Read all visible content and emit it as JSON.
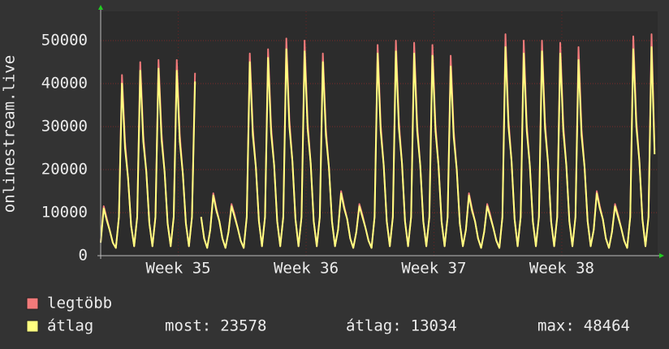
{
  "chart_data": {
    "type": "line",
    "ylabel": "onlinestream.live",
    "x": [
      0,
      4,
      8,
      12,
      16,
      20,
      24,
      28,
      32,
      36,
      40,
      44,
      48,
      52,
      56,
      60,
      64,
      68,
      72,
      76,
      80,
      84,
      88,
      92,
      96,
      100,
      104,
      108,
      112,
      116,
      120,
      124,
      128,
      132,
      136,
      140,
      144,
      148,
      152,
      156,
      160,
      164,
      168,
      172,
      176,
      180,
      184,
      188,
      192,
      196,
      200,
      204,
      208,
      212,
      216,
      220,
      224,
      228,
      232,
      236,
      240,
      244,
      248,
      252,
      256,
      260,
      264,
      268,
      272,
      276,
      280,
      284,
      288,
      292,
      296,
      300,
      304,
      308,
      312,
      316,
      320,
      324,
      328,
      332,
      336,
      340,
      344,
      348,
      352,
      356,
      360,
      364,
      368,
      372,
      376,
      380,
      384,
      388,
      392,
      396,
      400,
      404,
      408,
      412,
      416,
      420,
      424,
      428,
      432,
      436,
      440,
      444,
      448,
      452,
      456,
      460,
      464,
      468,
      472,
      476,
      480,
      484,
      488,
      492,
      496,
      500,
      504,
      508,
      512,
      516,
      520,
      524,
      528,
      532,
      536,
      540,
      544,
      548,
      552,
      556,
      560,
      564,
      568,
      572,
      576,
      580,
      584,
      588,
      592,
      596,
      600,
      604,
      608,
      612,
      616,
      620,
      624,
      628,
      632,
      636,
      640,
      644,
      648,
      652,
      656,
      660,
      664,
      668,
      672,
      676,
      680,
      684,
      688,
      692,
      696,
      700,
      704,
      708,
      712,
      716,
      720,
      724,
      728
    ],
    "xlim": [
      0,
      732
    ],
    "xticks": [
      {
        "value": 102,
        "label": "Week 35"
      },
      {
        "value": 270,
        "label": "Week 36"
      },
      {
        "value": 438,
        "label": "Week 37"
      },
      {
        "value": 606,
        "label": "Week 38"
      }
    ],
    "ylim": [
      0,
      56800
    ],
    "yticks": [
      0,
      10000,
      20000,
      30000,
      40000,
      50000
    ],
    "grid": true,
    "series": [
      {
        "name": "legtöbb",
        "color": "#f27a7a",
        "values": [
          3200,
          11500,
          8700,
          5800,
          3000,
          1800,
          9000,
          42000,
          26500,
          18000,
          7000,
          2200,
          9000,
          45000,
          28000,
          19500,
          7500,
          2200,
          9000,
          45500,
          28500,
          19500,
          7500,
          2200,
          9000,
          45500,
          28000,
          19000,
          7500,
          2200,
          9000,
          42500,
          null,
          9000,
          4000,
          1800,
          6000,
          14500,
          11000,
          8000,
          4000,
          1800,
          5500,
          12000,
          9500,
          6500,
          3500,
          1800,
          9000,
          47000,
          29500,
          20500,
          8000,
          2200,
          9000,
          48000,
          30000,
          21000,
          8000,
          2200,
          9000,
          50500,
          31500,
          22000,
          8500,
          2200,
          9000,
          50000,
          31000,
          21500,
          8000,
          2200,
          9000,
          47000,
          29500,
          20500,
          8000,
          2200,
          6000,
          15000,
          11500,
          8500,
          4000,
          1800,
          5500,
          12000,
          9500,
          6500,
          3500,
          1800,
          9000,
          49000,
          30500,
          21000,
          8000,
          2200,
          9000,
          50000,
          31000,
          21500,
          8000,
          2200,
          9000,
          49500,
          30500,
          21000,
          8000,
          2200,
          9000,
          49000,
          30500,
          21000,
          8000,
          2200,
          9000,
          46500,
          29000,
          20000,
          7500,
          2200,
          6000,
          14500,
          11000,
          8000,
          4000,
          1800,
          5500,
          12000,
          9500,
          6500,
          3500,
          1800,
          9000,
          51500,
          31500,
          22000,
          8500,
          2200,
          9000,
          50000,
          30500,
          21000,
          8000,
          2200,
          9000,
          50000,
          31000,
          21500,
          8000,
          2200,
          9000,
          49500,
          30500,
          21000,
          8000,
          2200,
          9000,
          48500,
          29500,
          20500,
          8000,
          2200,
          6000,
          15000,
          11500,
          8500,
          4000,
          1800,
          5500,
          12000,
          9500,
          6500,
          3500,
          1800,
          9000,
          51000,
          31500,
          22000,
          8500,
          2200,
          9000,
          51500,
          24500
        ]
      },
      {
        "name": "átlag",
        "color": "#ffff80",
        "values": [
          3000,
          11000,
          8200,
          5800,
          3000,
          1800,
          9000,
          40000,
          25000,
          18000,
          7000,
          2200,
          9000,
          43000,
          26500,
          19500,
          7500,
          2200,
          9000,
          43500,
          27000,
          19500,
          7500,
          2200,
          9000,
          43000,
          26500,
          19000,
          7500,
          2200,
          9000,
          40500,
          null,
          9000,
          4000,
          1800,
          6000,
          14000,
          10500,
          8000,
          4000,
          1800,
          5500,
          11500,
          9000,
          6500,
          3500,
          1800,
          9000,
          45000,
          28000,
          20500,
          8000,
          2200,
          9000,
          46000,
          28500,
          21000,
          8000,
          2200,
          9000,
          48000,
          30000,
          22000,
          8500,
          2200,
          9000,
          47500,
          29500,
          21500,
          8000,
          2200,
          9000,
          45000,
          28000,
          20500,
          8000,
          2200,
          6000,
          14500,
          11000,
          8500,
          4000,
          1800,
          5500,
          11500,
          9000,
          6500,
          3500,
          1800,
          9000,
          47000,
          29000,
          21000,
          8000,
          2200,
          9000,
          47500,
          29500,
          21500,
          8000,
          2200,
          9000,
          47000,
          29000,
          21000,
          8000,
          2200,
          9000,
          46500,
          29000,
          21000,
          8000,
          2200,
          9000,
          44000,
          27500,
          20000,
          7500,
          2200,
          6000,
          14000,
          10500,
          8000,
          4000,
          1800,
          5500,
          11500,
          9000,
          6500,
          3500,
          1800,
          9000,
          48500,
          30000,
          22000,
          8500,
          2200,
          9000,
          47000,
          29000,
          21000,
          8000,
          2200,
          9000,
          47500,
          29500,
          21500,
          8000,
          2200,
          9000,
          47000,
          29000,
          21000,
          8000,
          2200,
          9000,
          45500,
          28000,
          20500,
          8000,
          2200,
          6000,
          14500,
          11000,
          8500,
          4000,
          1800,
          5500,
          11500,
          9000,
          6500,
          3500,
          1800,
          9000,
          48000,
          30000,
          22000,
          8500,
          2200,
          9000,
          48500,
          23578
        ]
      }
    ],
    "legend_stats": [
      {
        "label": "most:",
        "value": 23578
      },
      {
        "label": "átlag:",
        "value": 13034
      },
      {
        "label": "max:",
        "value": 48464
      }
    ]
  }
}
